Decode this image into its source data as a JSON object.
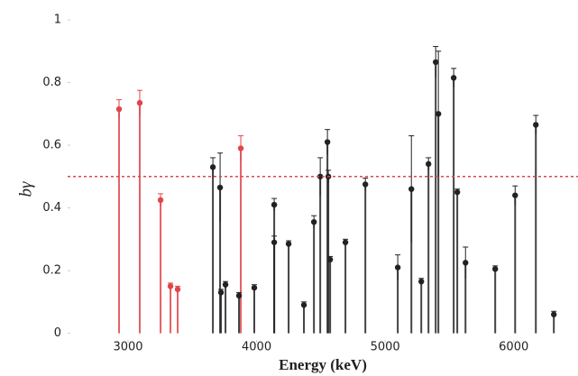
{
  "chart_data": {
    "type": "stem",
    "x_label": "Energy (keV)",
    "y_label": "bγ",
    "xlim": [
      2530,
      6500
    ],
    "ylim": [
      -0.03,
      1.0
    ],
    "xticks": [
      3000,
      4000,
      5000,
      6000
    ],
    "yticks": [
      0,
      0.2,
      0.4,
      0.6,
      0.8,
      1
    ],
    "hline": {
      "value": 0.5,
      "color": "#e0454a"
    },
    "series": [
      {
        "color": "#e0454a",
        "x": [
          2930,
          3091,
          3253,
          3330,
          3386,
          3877
        ],
        "values": [
          0.715,
          0.735,
          0.425,
          0.15,
          0.14,
          0.59
        ],
        "errors": [
          0.03,
          0.04,
          0.02,
          0.01,
          0.01,
          0.04
        ]
      },
      {
        "color": "#222222",
        "x": [
          3660,
          3716,
          3723,
          3758,
          3863,
          3982,
          4137,
          4137,
          4249,
          4368,
          4446,
          4495,
          4551,
          4558,
          4572,
          4691,
          4846,
          5098,
          5204,
          5281,
          5337,
          5393,
          5414,
          5533,
          5561,
          5625,
          5856,
          6011,
          6172,
          6312
        ],
        "values": [
          0.53,
          0.465,
          0.13,
          0.155,
          0.12,
          0.145,
          0.41,
          0.29,
          0.285,
          0.09,
          0.355,
          0.5,
          0.61,
          0.5,
          0.235,
          0.29,
          0.475,
          0.21,
          0.46,
          0.165,
          0.54,
          0.865,
          0.7,
          0.815,
          0.45,
          0.225,
          0.205,
          0.44,
          0.665,
          0.06
        ],
        "errors": [
          0.03,
          0.11,
          0.01,
          0.01,
          0.01,
          0.01,
          0.02,
          0.02,
          0.01,
          0.01,
          0.02,
          0.06,
          0.04,
          0.02,
          0.01,
          0.01,
          0.02,
          0.04,
          0.17,
          0.01,
          0.02,
          0.05,
          0.2,
          0.03,
          0.01,
          0.05,
          0.01,
          0.03,
          0.03,
          0.01
        ]
      }
    ]
  }
}
